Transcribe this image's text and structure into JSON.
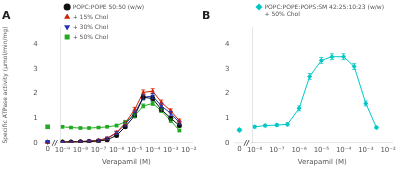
{
  "chart_data": [
    {
      "type": "line",
      "title": "A",
      "xlabel": "Verapamil (M)",
      "ylabel": "Specific ATPase activity (μmol/min/mg)",
      "log": "x",
      "xlim": [
        8e-10,
        0.015
      ],
      "xticks": [
        {
          "value": 1e-09,
          "label": "10⁻⁹"
        },
        {
          "value": 1e-08,
          "label": "10⁻⁸"
        },
        {
          "value": 1e-07,
          "label": "10⁻⁷"
        },
        {
          "value": 1e-06,
          "label": "10⁻⁶"
        },
        {
          "value": 1e-05,
          "label": "10⁻⁵"
        },
        {
          "value": 0.0001,
          "label": "10⁻⁴"
        },
        {
          "value": 0.001,
          "label": "10⁻³"
        },
        {
          "value": 0.01,
          "label": "10⁻²"
        }
      ],
      "ylim": [
        0,
        4.7
      ],
      "yticks": [
        0,
        1,
        2,
        3,
        4
      ],
      "grid": false,
      "legend": "upper left",
      "zero_label": "0",
      "break_mark": "//",
      "series": [
        {
          "name": "POPC:POPE 50:50 (w/w)",
          "color": "#111111",
          "marker": "circle",
          "x": [
            1e-09,
            3e-09,
            1e-08,
            3e-08,
            1e-07,
            3e-07,
            1e-06,
            3e-06,
            1e-05,
            3e-05,
            0.0001,
            0.0003,
            0.001,
            0.003
          ],
          "values": [
            0.03,
            0.03,
            0.04,
            0.05,
            0.07,
            0.12,
            0.3,
            0.65,
            1.1,
            1.85,
            1.8,
            1.35,
            1.0,
            0.7
          ],
          "yerr": [
            0.02,
            0.02,
            0.02,
            0.02,
            0.03,
            0.04,
            0.05,
            0.06,
            0.08,
            0.1,
            0.1,
            0.08,
            0.07,
            0.06
          ],
          "zero_value": 0.03,
          "zero_yerr": 0.02
        },
        {
          "name": "+ 15% Chol",
          "color": "#cc2200",
          "marker": "triangle-up",
          "x": [
            1e-09,
            3e-09,
            1e-08,
            3e-08,
            1e-07,
            3e-07,
            1e-06,
            3e-06,
            1e-05,
            3e-05,
            0.0001,
            0.0003,
            0.001,
            0.003
          ],
          "values": [
            0.03,
            0.04,
            0.05,
            0.07,
            0.1,
            0.18,
            0.42,
            0.8,
            1.35,
            2.05,
            2.1,
            1.65,
            1.3,
            0.9
          ],
          "yerr": [
            0.02,
            0.02,
            0.02,
            0.03,
            0.04,
            0.05,
            0.06,
            0.07,
            0.09,
            0.1,
            0.1,
            0.09,
            0.08,
            0.07
          ],
          "zero_value": 0.03,
          "zero_yerr": 0.02
        },
        {
          "name": "+ 30% Chol",
          "color": "#2233bb",
          "marker": "triangle-down",
          "x": [
            1e-09,
            3e-09,
            1e-08,
            3e-08,
            1e-07,
            3e-07,
            1e-06,
            3e-06,
            1e-05,
            3e-05,
            0.0001,
            0.0003,
            0.001,
            0.003
          ],
          "values": [
            0.03,
            0.04,
            0.05,
            0.07,
            0.1,
            0.18,
            0.4,
            0.75,
            1.2,
            1.85,
            1.9,
            1.5,
            1.2,
            0.82
          ],
          "yerr": [
            0.02,
            0.02,
            0.02,
            0.03,
            0.04,
            0.05,
            0.06,
            0.07,
            0.09,
            0.1,
            0.1,
            0.09,
            0.08,
            0.07
          ],
          "zero_value": 0.03,
          "zero_yerr": 0.02
        },
        {
          "name": "+ 50% Chol",
          "color": "#22aa22",
          "marker": "square",
          "x": [
            1e-09,
            3e-09,
            1e-08,
            3e-08,
            1e-07,
            3e-07,
            1e-06,
            3e-06,
            1e-05,
            3e-05,
            0.0001,
            0.0003,
            0.001,
            0.003
          ],
          "values": [
            0.65,
            0.62,
            0.6,
            0.6,
            0.62,
            0.65,
            0.7,
            0.85,
            1.1,
            1.5,
            1.6,
            1.3,
            0.9,
            0.5
          ],
          "yerr": [
            0.05,
            0.04,
            0.04,
            0.04,
            0.04,
            0.04,
            0.05,
            0.06,
            0.07,
            0.08,
            0.08,
            0.07,
            0.07,
            0.05
          ],
          "zero_value": 0.65,
          "zero_yerr": 0.05
        }
      ]
    },
    {
      "type": "line",
      "title": "B",
      "xlabel": "Verapamil (M)",
      "log": "x",
      "xlim": [
        8e-09,
        0.015
      ],
      "xticks": [
        {
          "value": 1e-08,
          "label": "10⁻⁸"
        },
        {
          "value": 1e-07,
          "label": "10⁻⁷"
        },
        {
          "value": 1e-06,
          "label": "10⁻⁶"
        },
        {
          "value": 1e-05,
          "label": "10⁻⁵"
        },
        {
          "value": 0.0001,
          "label": "10⁻⁴"
        },
        {
          "value": 0.001,
          "label": "10⁻³"
        },
        {
          "value": 0.01,
          "label": "10⁻²"
        }
      ],
      "ylim": [
        0,
        4.7
      ],
      "yticks": [
        0,
        1,
        2,
        3,
        4
      ],
      "grid": false,
      "legend": "upper left",
      "annotations": [
        "+ 50% Chol"
      ],
      "zero_label": "0",
      "break_mark": "//",
      "series": [
        {
          "name": "POPC:POPE:POPS:SM 42:25:10:23 (w/w)",
          "color": "#00c8c8",
          "marker": "diamond",
          "x": [
            1e-08,
            3e-08,
            1e-07,
            3e-07,
            1e-06,
            3e-06,
            1e-05,
            3e-05,
            0.0001,
            0.0003,
            0.001,
            0.003
          ],
          "values": [
            0.65,
            0.7,
            0.72,
            0.75,
            1.4,
            2.7,
            3.35,
            3.5,
            3.5,
            3.1,
            1.6,
            0.62
          ],
          "yerr": [
            0.05,
            0.05,
            0.05,
            0.06,
            0.1,
            0.12,
            0.12,
            0.12,
            0.12,
            0.12,
            0.1,
            0.05
          ],
          "zero_value": 0.52,
          "zero_yerr": 0.05
        }
      ]
    }
  ]
}
